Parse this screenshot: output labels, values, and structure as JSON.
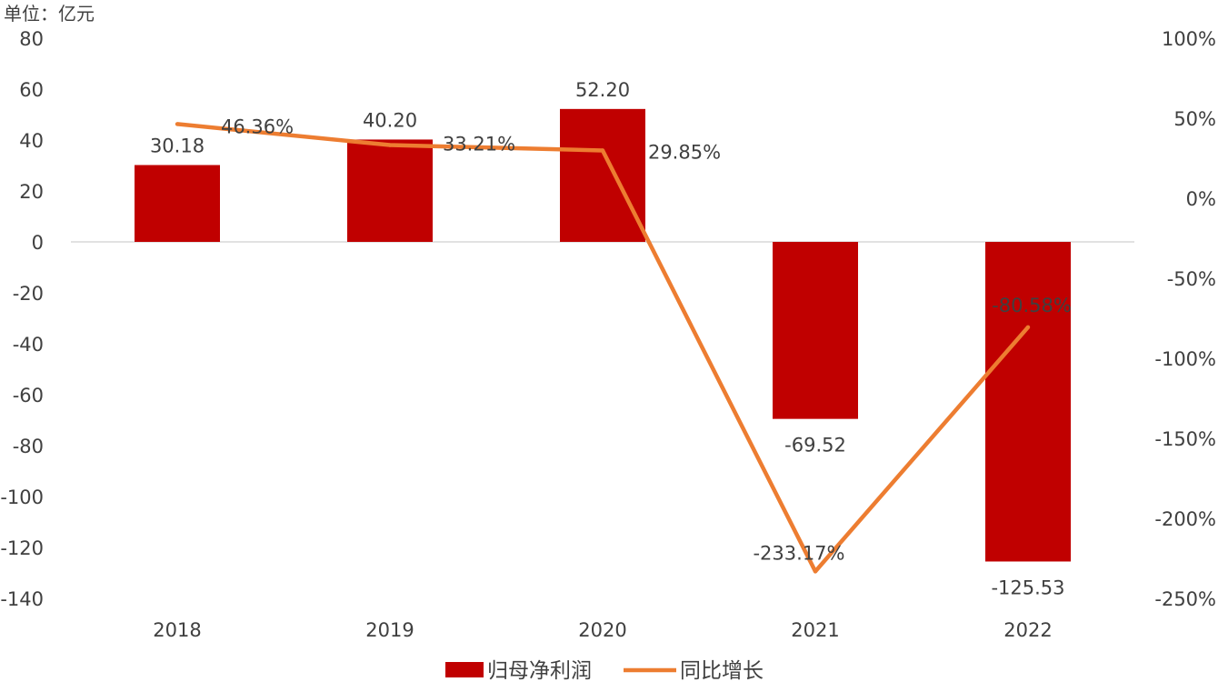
{
  "chart_data": {
    "type": "bar",
    "unit_label": "单位：亿元",
    "categories": [
      "2018",
      "2019",
      "2020",
      "2021",
      "2022"
    ],
    "series": [
      {
        "name": "归母净利润",
        "type": "bar",
        "axis": "left",
        "color": "#C00000",
        "values": [
          30.18,
          40.2,
          52.2,
          -69.52,
          -125.53
        ],
        "labels": [
          "30.18",
          "40.20",
          "52.20",
          "-69.52",
          "-125.53"
        ]
      },
      {
        "name": "同比增长",
        "type": "line",
        "axis": "right",
        "color": "#ED7D31",
        "values": [
          46.36,
          33.21,
          29.85,
          -233.17,
          -80.58
        ],
        "labels": [
          "46.36%",
          "33.21%",
          "29.85%",
          "-233.17%",
          "-80.58%"
        ]
      }
    ],
    "y_left": {
      "ylim": [
        -140,
        80
      ],
      "ticks": [
        "80",
        "60",
        "40",
        "20",
        "0",
        "-20",
        "-40",
        "-60",
        "-80",
        "-100",
        "-120",
        "-140"
      ]
    },
    "y_right": {
      "ylim": [
        -250,
        100
      ],
      "ticks": [
        "100%",
        "50%",
        "0%",
        "-50%",
        "-100%",
        "-150%",
        "-200%",
        "-250%"
      ]
    },
    "grid": false,
    "legend_position": "bottom-center"
  }
}
